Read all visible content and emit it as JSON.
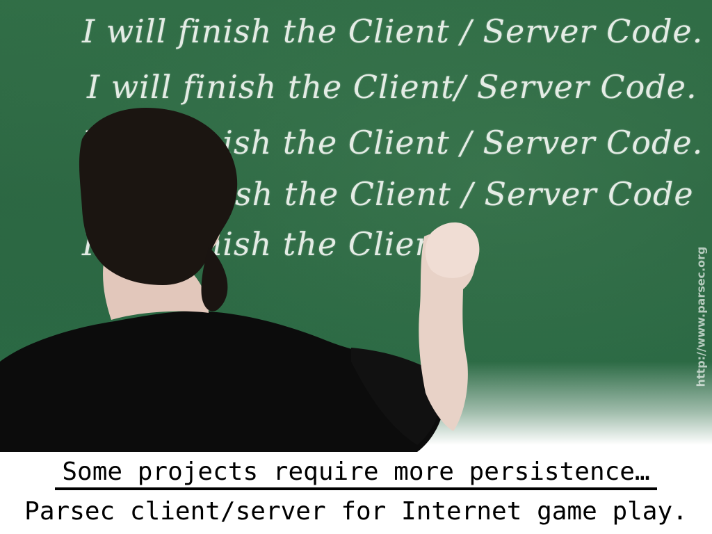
{
  "image": {
    "chalk_lines": [
      "I will  finish the Client / Server Code.",
      "I will finish the Client/ Server Code.",
      "I will finish the Client / Server Code.",
      "I will finish the Client / Server Code",
      "I will finish the Client"
    ],
    "watermark": "http://www.parsec.org"
  },
  "caption": {
    "line1": "Some projects require more persistence…",
    "line2": "Parsec client/server for Internet game play."
  },
  "colors": {
    "board_green": "#2b6b45",
    "chalk_white": "#eef3ee",
    "shirt_black": "#0c0c0c",
    "skin": "#e8d2c7",
    "text_black": "#000000"
  }
}
